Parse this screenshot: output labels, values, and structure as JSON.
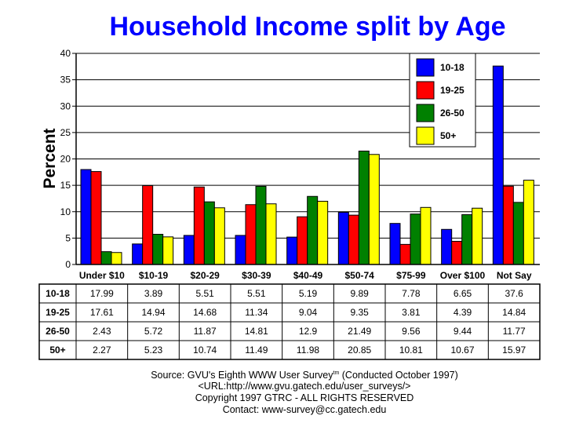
{
  "chart_data": {
    "type": "bar",
    "title": "Household Income split by Age",
    "xlabel": "",
    "ylabel": "Percent",
    "ylim": [
      0,
      40
    ],
    "yticks": [
      0,
      5,
      10,
      15,
      20,
      25,
      30,
      35,
      40
    ],
    "grid": true,
    "legend_position": "top-right",
    "categories": [
      "Under $10",
      "$10-19",
      "$20-29",
      "$30-39",
      "$40-49",
      "$50-74",
      "$75-99",
      "Over $100",
      "Not Say"
    ],
    "series": [
      {
        "name": "10-18",
        "color": "#0000ff",
        "values": [
          17.99,
          3.89,
          5.51,
          5.51,
          5.19,
          9.89,
          7.78,
          6.65,
          37.6
        ]
      },
      {
        "name": "19-25",
        "color": "#ff0000",
        "values": [
          17.61,
          14.94,
          14.68,
          11.34,
          9.04,
          9.35,
          3.81,
          4.39,
          14.84
        ]
      },
      {
        "name": "26-50",
        "color": "#008000",
        "values": [
          2.43,
          5.72,
          11.87,
          14.81,
          12.9,
          21.49,
          9.56,
          9.44,
          11.77
        ]
      },
      {
        "name": "50+",
        "color": "#ffff00",
        "values": [
          2.27,
          5.23,
          10.74,
          11.49,
          11.98,
          20.85,
          10.81,
          10.67,
          15.97
        ]
      }
    ],
    "table_values": [
      [
        "17.99",
        "3.89",
        "5.51",
        "5.51",
        "5.19",
        "9.89",
        "7.78",
        "6.65",
        "37.6"
      ],
      [
        "17.61",
        "14.94",
        "14.68",
        "11.34",
        "9.04",
        "9.35",
        "3.81",
        "4.39",
        "14.84"
      ],
      [
        "2.43",
        "5.72",
        "11.87",
        "14.81",
        "12.9",
        "21.49",
        "9.56",
        "9.44",
        "11.77"
      ],
      [
        "2.27",
        "5.23",
        "10.74",
        "11.49",
        "11.98",
        "20.85",
        "10.81",
        "10.67",
        "15.97"
      ]
    ]
  },
  "footer": {
    "source": "Source: GVU's Eighth WWW User Survey",
    "tm": "tm",
    "conducted": " (Conducted October 1997)",
    "url": "<URL:http://www.gvu.gatech.edu/user_surveys/>",
    "copyright": "Copyright 1997 GTRC - ALL RIGHTS RESERVED",
    "contact": "Contact: www-survey@cc.gatech.edu"
  }
}
